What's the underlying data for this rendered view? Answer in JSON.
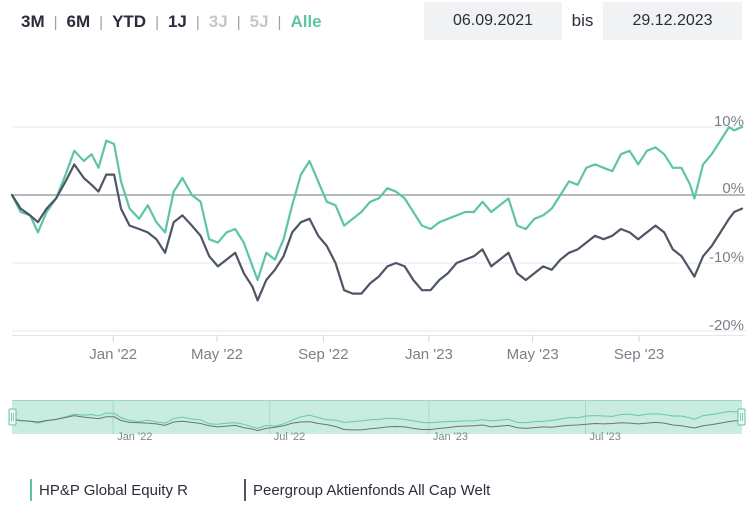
{
  "range_buttons": [
    {
      "label": "3M",
      "state": "normal"
    },
    {
      "label": "6M",
      "state": "normal"
    },
    {
      "label": "YTD",
      "state": "normal"
    },
    {
      "label": "1J",
      "state": "normal"
    },
    {
      "label": "3J",
      "state": "disabled"
    },
    {
      "label": "5J",
      "state": "disabled"
    },
    {
      "label": "Alle",
      "state": "active"
    }
  ],
  "date_range": {
    "from": "06.09.2021",
    "separator": "bis",
    "to": "29.12.2023"
  },
  "colors": {
    "fund": "#5fc4a6",
    "peer": "#4d5566",
    "accent": "#5fc4a6",
    "navigator_bg": "#c8ece0"
  },
  "legend": [
    {
      "label": "HP&P Global Equity R",
      "color": "#5fc4a6"
    },
    {
      "label": "Peergroup Aktienfonds All Cap Welt",
      "color": "#4d5566"
    }
  ],
  "chart_data": {
    "type": "line",
    "x_start": "2021-09-06",
    "x_end": "2023-12-29",
    "x_ticks": [
      {
        "date": "2022-01-01",
        "label": "Jan '22"
      },
      {
        "date": "2022-05-01",
        "label": "May '22"
      },
      {
        "date": "2022-09-01",
        "label": "Sep '22"
      },
      {
        "date": "2023-01-01",
        "label": "Jan '23"
      },
      {
        "date": "2023-05-01",
        "label": "May '23"
      },
      {
        "date": "2023-09-01",
        "label": "Sep '23"
      }
    ],
    "y_ticks": [
      {
        "value": 10,
        "label": "10%"
      },
      {
        "value": 0,
        "label": "0%"
      },
      {
        "value": -10,
        "label": "-10%"
      },
      {
        "value": -20,
        "label": "-20%"
      }
    ],
    "ylim": [
      -20,
      10
    ],
    "grid": true,
    "legend_position": "bottom-left",
    "navigator_ticks": [
      {
        "date": "2022-01-01",
        "label": "Jan '22"
      },
      {
        "date": "2022-07-01",
        "label": "Jul '22"
      },
      {
        "date": "2023-01-01",
        "label": "Jan '23"
      },
      {
        "date": "2023-07-01",
        "label": "Jul '23"
      }
    ],
    "series": [
      {
        "name": "HP&P Global Equity R",
        "color": "#5fc4a6",
        "points": [
          [
            "2021-09-06",
            0.0
          ],
          [
            "2021-09-16",
            -2.5
          ],
          [
            "2021-09-27",
            -3.0
          ],
          [
            "2021-10-06",
            -5.5
          ],
          [
            "2021-10-16",
            -2.5
          ],
          [
            "2021-10-27",
            -0.5
          ],
          [
            "2021-11-07",
            3.0
          ],
          [
            "2021-11-17",
            6.5
          ],
          [
            "2021-11-28",
            5.0
          ],
          [
            "2021-12-07",
            6.0
          ],
          [
            "2021-12-15",
            4.0
          ],
          [
            "2021-12-24",
            8.0
          ],
          [
            "2022-01-02",
            7.5
          ],
          [
            "2022-01-10",
            2.0
          ],
          [
            "2022-01-20",
            -2.0
          ],
          [
            "2022-01-31",
            -3.5
          ],
          [
            "2022-02-10",
            -1.5
          ],
          [
            "2022-02-20",
            -4.0
          ],
          [
            "2022-03-02",
            -5.5
          ],
          [
            "2022-03-12",
            0.5
          ],
          [
            "2022-03-22",
            2.5
          ],
          [
            "2022-04-02",
            0.0
          ],
          [
            "2022-04-12",
            -1.0
          ],
          [
            "2022-04-22",
            -6.5
          ],
          [
            "2022-05-02",
            -7.0
          ],
          [
            "2022-05-12",
            -5.5
          ],
          [
            "2022-05-22",
            -5.0
          ],
          [
            "2022-06-01",
            -7.0
          ],
          [
            "2022-06-11",
            -10.5
          ],
          [
            "2022-06-17",
            -12.5
          ],
          [
            "2022-06-27",
            -8.5
          ],
          [
            "2022-07-07",
            -9.5
          ],
          [
            "2022-07-17",
            -6.5
          ],
          [
            "2022-07-27",
            -1.5
          ],
          [
            "2022-08-06",
            3.0
          ],
          [
            "2022-08-16",
            5.0
          ],
          [
            "2022-08-26",
            2.0
          ],
          [
            "2022-09-05",
            -1.0
          ],
          [
            "2022-09-15",
            -1.5
          ],
          [
            "2022-09-25",
            -4.5
          ],
          [
            "2022-10-05",
            -3.5
          ],
          [
            "2022-10-15",
            -2.5
          ],
          [
            "2022-10-25",
            -1.0
          ],
          [
            "2022-11-04",
            -0.5
          ],
          [
            "2022-11-14",
            1.0
          ],
          [
            "2022-11-24",
            0.5
          ],
          [
            "2022-12-04",
            -0.5
          ],
          [
            "2022-12-14",
            -2.5
          ],
          [
            "2022-12-24",
            -4.5
          ],
          [
            "2023-01-03",
            -5.0
          ],
          [
            "2023-01-13",
            -4.0
          ],
          [
            "2023-01-23",
            -3.5
          ],
          [
            "2023-02-02",
            -3.0
          ],
          [
            "2023-02-12",
            -2.5
          ],
          [
            "2023-02-22",
            -2.5
          ],
          [
            "2023-03-04",
            -1.0
          ],
          [
            "2023-03-14",
            -2.5
          ],
          [
            "2023-03-24",
            -1.5
          ],
          [
            "2023-04-03",
            -0.5
          ],
          [
            "2023-04-13",
            -4.5
          ],
          [
            "2023-04-23",
            -5.0
          ],
          [
            "2023-05-03",
            -3.5
          ],
          [
            "2023-05-13",
            -3.0
          ],
          [
            "2023-05-23",
            -2.0
          ],
          [
            "2023-06-02",
            0.0
          ],
          [
            "2023-06-12",
            2.0
          ],
          [
            "2023-06-22",
            1.5
          ],
          [
            "2023-07-02",
            4.0
          ],
          [
            "2023-07-12",
            4.5
          ],
          [
            "2023-07-22",
            4.0
          ],
          [
            "2023-08-01",
            3.5
          ],
          [
            "2023-08-11",
            6.0
          ],
          [
            "2023-08-21",
            6.5
          ],
          [
            "2023-08-31",
            4.5
          ],
          [
            "2023-09-10",
            6.5
          ],
          [
            "2023-09-20",
            7.0
          ],
          [
            "2023-09-30",
            6.0
          ],
          [
            "2023-10-10",
            4.0
          ],
          [
            "2023-10-20",
            4.0
          ],
          [
            "2023-10-30",
            1.5
          ],
          [
            "2023-11-04",
            -0.5
          ],
          [
            "2023-11-14",
            4.5
          ],
          [
            "2023-11-24",
            6.0
          ],
          [
            "2023-12-04",
            8.0
          ],
          [
            "2023-12-14",
            10.0
          ],
          [
            "2023-12-20",
            9.5
          ],
          [
            "2023-12-29",
            10.0
          ]
        ]
      },
      {
        "name": "Peergroup Aktienfonds All Cap Welt",
        "color": "#4d5566",
        "points": [
          [
            "2021-09-06",
            0.0
          ],
          [
            "2021-09-16",
            -2.0
          ],
          [
            "2021-09-27",
            -3.0
          ],
          [
            "2021-10-06",
            -4.0
          ],
          [
            "2021-10-16",
            -2.0
          ],
          [
            "2021-10-27",
            -0.5
          ],
          [
            "2021-11-07",
            2.0
          ],
          [
            "2021-11-17",
            4.5
          ],
          [
            "2021-11-28",
            2.5
          ],
          [
            "2021-12-07",
            1.5
          ],
          [
            "2021-12-15",
            0.5
          ],
          [
            "2021-12-24",
            3.0
          ],
          [
            "2022-01-02",
            3.0
          ],
          [
            "2022-01-10",
            -2.0
          ],
          [
            "2022-01-20",
            -4.5
          ],
          [
            "2022-01-31",
            -5.0
          ],
          [
            "2022-02-10",
            -5.5
          ],
          [
            "2022-02-20",
            -6.5
          ],
          [
            "2022-03-02",
            -8.5
          ],
          [
            "2022-03-12",
            -4.0
          ],
          [
            "2022-03-22",
            -3.0
          ],
          [
            "2022-04-02",
            -4.5
          ],
          [
            "2022-04-12",
            -6.0
          ],
          [
            "2022-04-22",
            -9.0
          ],
          [
            "2022-05-02",
            -10.5
          ],
          [
            "2022-05-12",
            -9.5
          ],
          [
            "2022-05-22",
            -8.5
          ],
          [
            "2022-06-01",
            -11.5
          ],
          [
            "2022-06-11",
            -13.5
          ],
          [
            "2022-06-17",
            -15.5
          ],
          [
            "2022-06-27",
            -12.5
          ],
          [
            "2022-07-07",
            -11.0
          ],
          [
            "2022-07-17",
            -9.0
          ],
          [
            "2022-07-27",
            -5.5
          ],
          [
            "2022-08-06",
            -4.0
          ],
          [
            "2022-08-16",
            -3.5
          ],
          [
            "2022-08-26",
            -6.0
          ],
          [
            "2022-09-05",
            -7.5
          ],
          [
            "2022-09-15",
            -10.0
          ],
          [
            "2022-09-25",
            -14.0
          ],
          [
            "2022-10-05",
            -14.5
          ],
          [
            "2022-10-15",
            -14.5
          ],
          [
            "2022-10-25",
            -13.0
          ],
          [
            "2022-11-04",
            -12.0
          ],
          [
            "2022-11-14",
            -10.5
          ],
          [
            "2022-11-24",
            -10.0
          ],
          [
            "2022-12-04",
            -10.5
          ],
          [
            "2022-12-14",
            -12.5
          ],
          [
            "2022-12-24",
            -14.0
          ],
          [
            "2023-01-03",
            -14.0
          ],
          [
            "2023-01-13",
            -12.5
          ],
          [
            "2023-01-23",
            -11.5
          ],
          [
            "2023-02-02",
            -10.0
          ],
          [
            "2023-02-12",
            -9.5
          ],
          [
            "2023-02-22",
            -9.0
          ],
          [
            "2023-03-04",
            -8.0
          ],
          [
            "2023-03-14",
            -10.5
          ],
          [
            "2023-03-24",
            -9.5
          ],
          [
            "2023-04-03",
            -8.5
          ],
          [
            "2023-04-13",
            -11.5
          ],
          [
            "2023-04-23",
            -12.5
          ],
          [
            "2023-05-03",
            -11.5
          ],
          [
            "2023-05-13",
            -10.5
          ],
          [
            "2023-05-23",
            -11.0
          ],
          [
            "2023-06-02",
            -9.5
          ],
          [
            "2023-06-12",
            -8.5
          ],
          [
            "2023-06-22",
            -8.0
          ],
          [
            "2023-07-02",
            -7.0
          ],
          [
            "2023-07-12",
            -6.0
          ],
          [
            "2023-07-22",
            -6.5
          ],
          [
            "2023-08-01",
            -6.0
          ],
          [
            "2023-08-11",
            -5.0
          ],
          [
            "2023-08-21",
            -5.5
          ],
          [
            "2023-08-31",
            -6.5
          ],
          [
            "2023-09-10",
            -5.5
          ],
          [
            "2023-09-20",
            -4.5
          ],
          [
            "2023-09-30",
            -5.5
          ],
          [
            "2023-10-10",
            -8.0
          ],
          [
            "2023-10-20",
            -9.0
          ],
          [
            "2023-10-30",
            -11.0
          ],
          [
            "2023-11-04",
            -12.0
          ],
          [
            "2023-11-14",
            -9.0
          ],
          [
            "2023-11-24",
            -7.5
          ],
          [
            "2023-12-04",
            -5.5
          ],
          [
            "2023-12-14",
            -3.5
          ],
          [
            "2023-12-20",
            -2.5
          ],
          [
            "2023-12-29",
            -2.0
          ]
        ]
      }
    ]
  }
}
